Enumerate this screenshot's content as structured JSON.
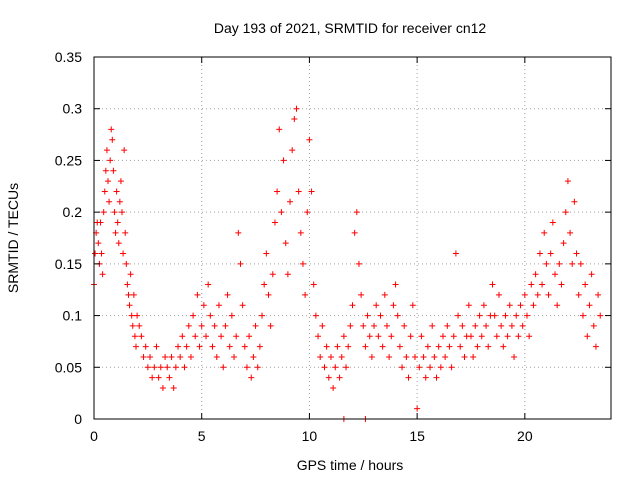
{
  "chart_data": {
    "type": "scatter",
    "title": "Day 193 of 2021, SRMTID for receiver cn12",
    "xlabel": "GPS time / hours",
    "ylabel": "SRMTID / TECUs",
    "xlim": [
      0,
      24
    ],
    "ylim": [
      0,
      0.35
    ],
    "xticks": [
      0,
      5,
      10,
      15,
      20
    ],
    "xtick_labels": [
      "0",
      "5",
      "10",
      "15",
      "20"
    ],
    "yticks": [
      0,
      0.05,
      0.1,
      0.15,
      0.2,
      0.25,
      0.3,
      0.35
    ],
    "ytick_labels": [
      "0",
      "0.05",
      "0.1",
      "0.15",
      "0.2",
      "0.25",
      "0.3",
      "0.35"
    ],
    "grid": true,
    "marker": "+",
    "color": "#ff0000",
    "series": [
      {
        "name": "SRMTID",
        "points": [
          [
            0.0,
            0.13
          ],
          [
            0.05,
            0.16
          ],
          [
            0.1,
            0.18
          ],
          [
            0.15,
            0.19
          ],
          [
            0.2,
            0.17
          ],
          [
            0.25,
            0.15
          ],
          [
            0.3,
            0.19
          ],
          [
            0.35,
            0.16
          ],
          [
            0.4,
            0.14
          ],
          [
            0.45,
            0.2
          ],
          [
            0.5,
            0.22
          ],
          [
            0.55,
            0.24
          ],
          [
            0.6,
            0.26
          ],
          [
            0.65,
            0.23
          ],
          [
            0.7,
            0.21
          ],
          [
            0.75,
            0.25
          ],
          [
            0.8,
            0.28
          ],
          [
            0.85,
            0.27
          ],
          [
            0.9,
            0.24
          ],
          [
            0.95,
            0.2
          ],
          [
            1.0,
            0.18
          ],
          [
            1.05,
            0.22
          ],
          [
            1.1,
            0.19
          ],
          [
            1.15,
            0.17
          ],
          [
            1.2,
            0.21
          ],
          [
            1.25,
            0.23
          ],
          [
            1.3,
            0.2
          ],
          [
            1.35,
            0.16
          ],
          [
            1.4,
            0.26
          ],
          [
            1.45,
            0.18
          ],
          [
            1.5,
            0.15
          ],
          [
            1.55,
            0.13
          ],
          [
            1.6,
            0.12
          ],
          [
            1.65,
            0.11
          ],
          [
            1.7,
            0.14
          ],
          [
            1.75,
            0.1
          ],
          [
            1.8,
            0.09
          ],
          [
            1.85,
            0.12
          ],
          [
            1.9,
            0.08
          ],
          [
            1.95,
            0.07
          ],
          [
            2.0,
            0.1
          ],
          [
            2.1,
            0.09
          ],
          [
            2.2,
            0.08
          ],
          [
            2.3,
            0.06
          ],
          [
            2.4,
            0.07
          ],
          [
            2.5,
            0.05
          ],
          [
            2.6,
            0.06
          ],
          [
            2.7,
            0.04
          ],
          [
            2.8,
            0.05
          ],
          [
            2.9,
            0.07
          ],
          [
            3.0,
            0.04
          ],
          [
            3.1,
            0.05
          ],
          [
            3.2,
            0.03
          ],
          [
            3.3,
            0.06
          ],
          [
            3.4,
            0.05
          ],
          [
            3.5,
            0.04
          ],
          [
            3.6,
            0.06
          ],
          [
            3.7,
            0.03
          ],
          [
            3.8,
            0.05
          ],
          [
            3.9,
            0.07
          ],
          [
            4.0,
            0.06
          ],
          [
            4.1,
            0.08
          ],
          [
            4.2,
            0.05
          ],
          [
            4.3,
            0.07
          ],
          [
            4.4,
            0.09
          ],
          [
            4.5,
            0.06
          ],
          [
            4.6,
            0.1
          ],
          [
            4.7,
            0.08
          ],
          [
            4.8,
            0.12
          ],
          [
            4.9,
            0.07
          ],
          [
            5.0,
            0.09
          ],
          [
            5.1,
            0.11
          ],
          [
            5.2,
            0.08
          ],
          [
            5.3,
            0.13
          ],
          [
            5.4,
            0.1
          ],
          [
            5.5,
            0.07
          ],
          [
            5.6,
            0.09
          ],
          [
            5.7,
            0.06
          ],
          [
            5.8,
            0.11
          ],
          [
            5.9,
            0.08
          ],
          [
            6.0,
            0.05
          ],
          [
            6.1,
            0.09
          ],
          [
            6.2,
            0.12
          ],
          [
            6.3,
            0.07
          ],
          [
            6.4,
            0.1
          ],
          [
            6.5,
            0.06
          ],
          [
            6.6,
            0.08
          ],
          [
            6.7,
            0.18
          ],
          [
            6.8,
            0.15
          ],
          [
            6.9,
            0.11
          ],
          [
            7.0,
            0.07
          ],
          [
            7.1,
            0.05
          ],
          [
            7.2,
            0.08
          ],
          [
            7.3,
            0.04
          ],
          [
            7.4,
            0.06
          ],
          [
            7.5,
            0.09
          ],
          [
            7.6,
            0.05
          ],
          [
            7.7,
            0.07
          ],
          [
            7.8,
            0.1
          ],
          [
            7.9,
            0.13
          ],
          [
            8.0,
            0.16
          ],
          [
            8.1,
            0.12
          ],
          [
            8.2,
            0.09
          ],
          [
            8.3,
            0.14
          ],
          [
            8.4,
            0.19
          ],
          [
            8.5,
            0.22
          ],
          [
            8.6,
            0.28
          ],
          [
            8.7,
            0.2
          ],
          [
            8.8,
            0.25
          ],
          [
            8.9,
            0.17
          ],
          [
            9.0,
            0.14
          ],
          [
            9.1,
            0.21
          ],
          [
            9.2,
            0.26
          ],
          [
            9.3,
            0.29
          ],
          [
            9.4,
            0.3
          ],
          [
            9.5,
            0.22
          ],
          [
            9.6,
            0.18
          ],
          [
            9.7,
            0.15
          ],
          [
            9.8,
            0.12
          ],
          [
            9.9,
            0.2
          ],
          [
            10.0,
            0.27
          ],
          [
            10.1,
            0.22
          ],
          [
            10.2,
            0.13
          ],
          [
            10.3,
            0.1
          ],
          [
            10.4,
            0.08
          ],
          [
            10.5,
            0.06
          ],
          [
            10.6,
            0.09
          ],
          [
            10.7,
            0.05
          ],
          [
            10.8,
            0.07
          ],
          [
            10.9,
            0.04
          ],
          [
            11.0,
            0.06
          ],
          [
            11.1,
            0.03
          ],
          [
            11.2,
            0.05
          ],
          [
            11.3,
            0.07
          ],
          [
            11.4,
            0.04
          ],
          [
            11.5,
            0.06
          ],
          [
            11.6,
            0.08
          ],
          [
            11.7,
            0.05
          ],
          [
            11.8,
            0.07
          ],
          [
            11.9,
            0.09
          ],
          [
            12.0,
            0.11
          ],
          [
            12.1,
            0.18
          ],
          [
            12.2,
            0.2
          ],
          [
            12.3,
            0.15
          ],
          [
            12.4,
            0.12
          ],
          [
            12.5,
            0.09
          ],
          [
            12.6,
            0.07
          ],
          [
            12.7,
            0.1
          ],
          [
            12.8,
            0.08
          ],
          [
            12.9,
            0.06
          ],
          [
            13.0,
            0.09
          ],
          [
            13.1,
            0.11
          ],
          [
            13.2,
            0.08
          ],
          [
            13.3,
            0.1
          ],
          [
            13.4,
            0.07
          ],
          [
            13.5,
            0.12
          ],
          [
            13.6,
            0.09
          ],
          [
            13.7,
            0.06
          ],
          [
            13.8,
            0.08
          ],
          [
            13.9,
            0.11
          ],
          [
            14.0,
            0.13
          ],
          [
            14.1,
            0.1
          ],
          [
            14.2,
            0.07
          ],
          [
            14.3,
            0.05
          ],
          [
            14.4,
            0.09
          ],
          [
            14.5,
            0.06
          ],
          [
            14.6,
            0.04
          ],
          [
            14.7,
            0.08
          ],
          [
            14.8,
            0.11
          ],
          [
            14.9,
            0.06
          ],
          [
            15.0,
            0.01
          ],
          [
            15.1,
            0.05
          ],
          [
            15.2,
            0.08
          ],
          [
            15.3,
            0.06
          ],
          [
            15.4,
            0.04
          ],
          [
            15.5,
            0.07
          ],
          [
            15.6,
            0.05
          ],
          [
            15.7,
            0.09
          ],
          [
            15.8,
            0.06
          ],
          [
            15.9,
            0.04
          ],
          [
            16.0,
            0.07
          ],
          [
            16.1,
            0.05
          ],
          [
            16.2,
            0.08
          ],
          [
            16.3,
            0.06
          ],
          [
            16.4,
            0.09
          ],
          [
            16.5,
            0.07
          ],
          [
            16.6,
            0.05
          ],
          [
            16.7,
            0.08
          ],
          [
            16.8,
            0.16
          ],
          [
            16.9,
            0.1
          ],
          [
            17.0,
            0.07
          ],
          [
            17.1,
            0.09
          ],
          [
            17.2,
            0.06
          ],
          [
            17.3,
            0.08
          ],
          [
            17.4,
            0.11
          ],
          [
            17.5,
            0.08
          ],
          [
            17.6,
            0.06
          ],
          [
            17.7,
            0.09
          ],
          [
            17.8,
            0.07
          ],
          [
            17.9,
            0.1
          ],
          [
            18.0,
            0.08
          ],
          [
            18.1,
            0.11
          ],
          [
            18.2,
            0.09
          ],
          [
            18.3,
            0.07
          ],
          [
            18.4,
            0.1
          ],
          [
            18.5,
            0.13
          ],
          [
            18.6,
            0.1
          ],
          [
            18.7,
            0.08
          ],
          [
            18.8,
            0.12
          ],
          [
            18.9,
            0.09
          ],
          [
            19.0,
            0.07
          ],
          [
            19.1,
            0.1
          ],
          [
            19.2,
            0.08
          ],
          [
            19.3,
            0.11
          ],
          [
            19.4,
            0.09
          ],
          [
            19.5,
            0.06
          ],
          [
            19.6,
            0.1
          ],
          [
            19.7,
            0.08
          ],
          [
            19.8,
            0.11
          ],
          [
            19.9,
            0.09
          ],
          [
            20.0,
            0.12
          ],
          [
            20.1,
            0.1
          ],
          [
            20.2,
            0.08
          ],
          [
            20.3,
            0.13
          ],
          [
            20.4,
            0.11
          ],
          [
            20.5,
            0.14
          ],
          [
            20.6,
            0.12
          ],
          [
            20.7,
            0.16
          ],
          [
            20.8,
            0.13
          ],
          [
            20.9,
            0.18
          ],
          [
            21.0,
            0.15
          ],
          [
            21.1,
            0.12
          ],
          [
            21.2,
            0.16
          ],
          [
            21.3,
            0.19
          ],
          [
            21.4,
            0.14
          ],
          [
            21.5,
            0.11
          ],
          [
            21.6,
            0.15
          ],
          [
            21.7,
            0.13
          ],
          [
            21.8,
            0.17
          ],
          [
            21.9,
            0.2
          ],
          [
            22.0,
            0.23
          ],
          [
            22.1,
            0.18
          ],
          [
            22.2,
            0.15
          ],
          [
            22.3,
            0.21
          ],
          [
            22.4,
            0.16
          ],
          [
            22.5,
            0.12
          ],
          [
            22.6,
            0.15
          ],
          [
            22.7,
            0.1
          ],
          [
            22.8,
            0.13
          ],
          [
            22.9,
            0.08
          ],
          [
            23.0,
            0.11
          ],
          [
            23.1,
            0.14
          ],
          [
            23.2,
            0.09
          ],
          [
            23.3,
            0.07
          ],
          [
            23.4,
            0.12
          ],
          [
            23.5,
            0.1
          ],
          [
            11.6,
            0.0
          ],
          [
            12.6,
            0.0
          ]
        ]
      }
    ]
  }
}
